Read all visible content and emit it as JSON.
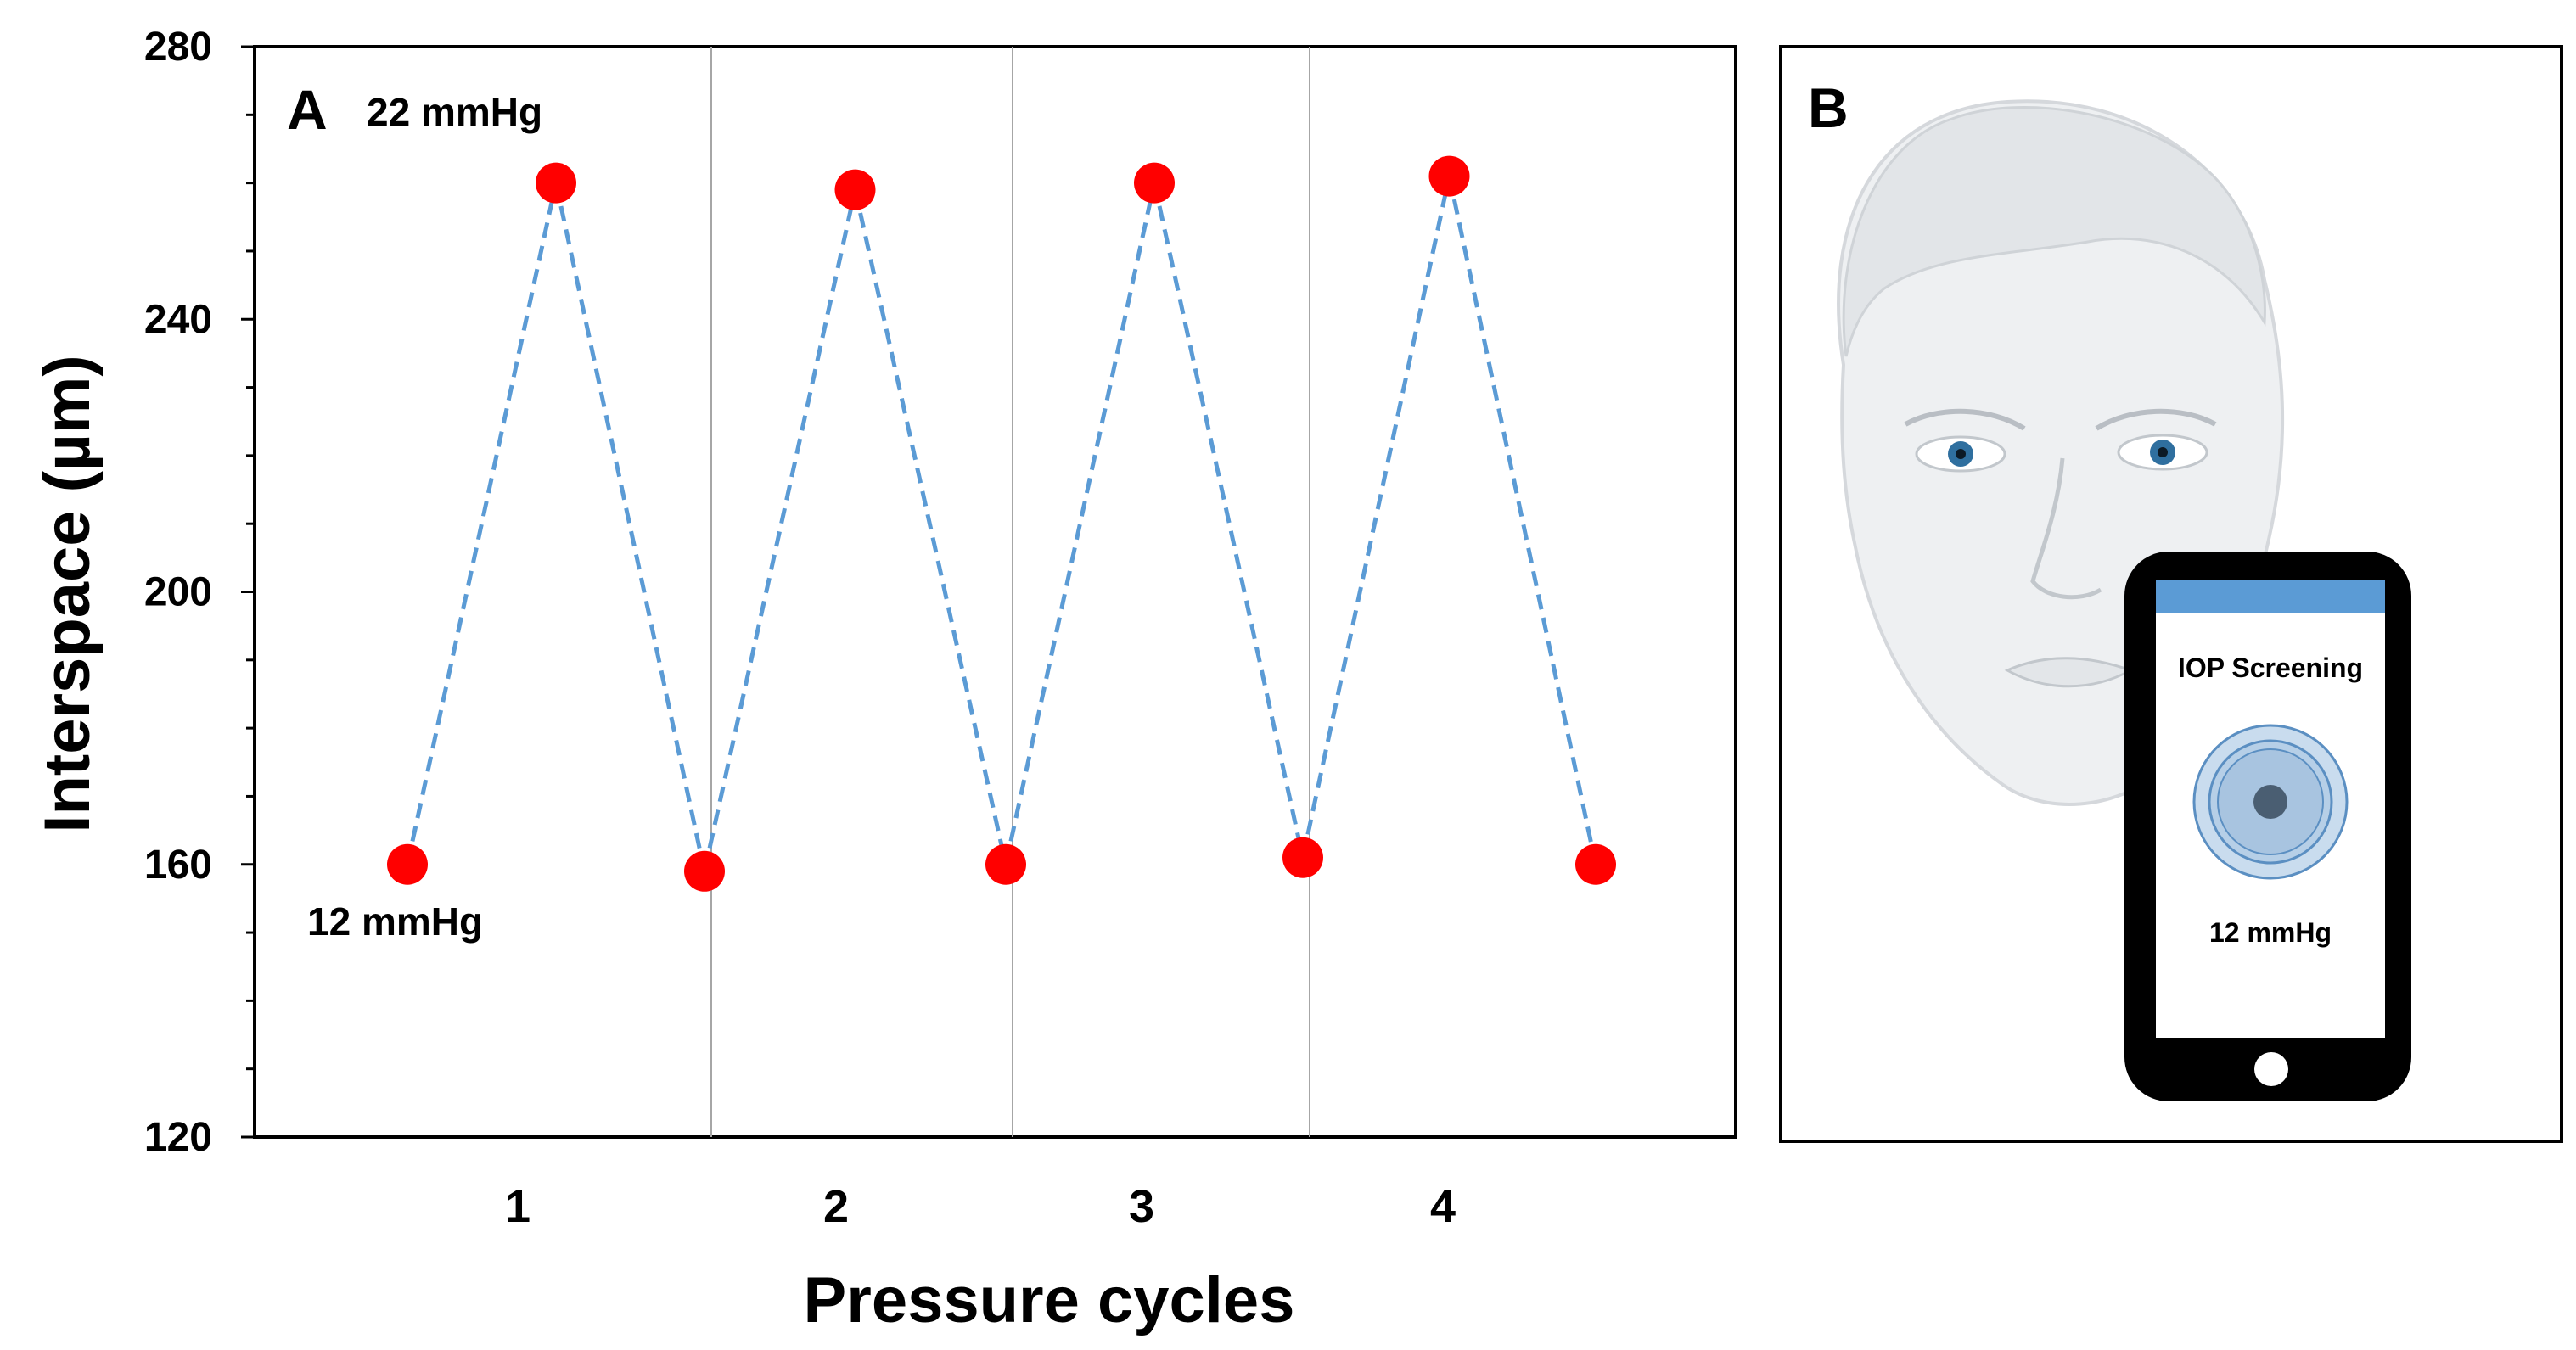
{
  "panel_a": {
    "label": "A",
    "annotation_high": "22 mmHg",
    "annotation_low": "12 mmHg"
  },
  "panel_b": {
    "label": "B",
    "phone": {
      "app_title": "IOP Screening",
      "reading": "12 mmHg",
      "header_color": "#5b9bd5"
    }
  },
  "chart_data": {
    "type": "line",
    "title": "",
    "xlabel": "Pressure cycles",
    "ylabel": "Interspace (µm)",
    "ylim": [
      120,
      280
    ],
    "yticks": [
      120,
      160,
      200,
      240,
      280
    ],
    "y_minor_step": 10,
    "x_tick_labels": [
      "1",
      "2",
      "3",
      "4"
    ],
    "grid": "vertical separators between cycles",
    "series": [
      {
        "marker_color": "#ff0000",
        "line_color": "#5b9bd5",
        "line_style": "dashed",
        "points": [
          {
            "cycle_pos": 0.5,
            "y": 160
          },
          {
            "cycle_pos": 1.0,
            "y": 260
          },
          {
            "cycle_pos": 1.5,
            "y": 159
          },
          {
            "cycle_pos": 2.0,
            "y": 259
          },
          {
            "cycle_pos": 2.5,
            "y": 160
          },
          {
            "cycle_pos": 3.0,
            "y": 260
          },
          {
            "cycle_pos": 3.5,
            "y": 161
          },
          {
            "cycle_pos": 4.0,
            "y": 261
          },
          {
            "cycle_pos": 4.5,
            "y": 160
          }
        ]
      }
    ]
  }
}
